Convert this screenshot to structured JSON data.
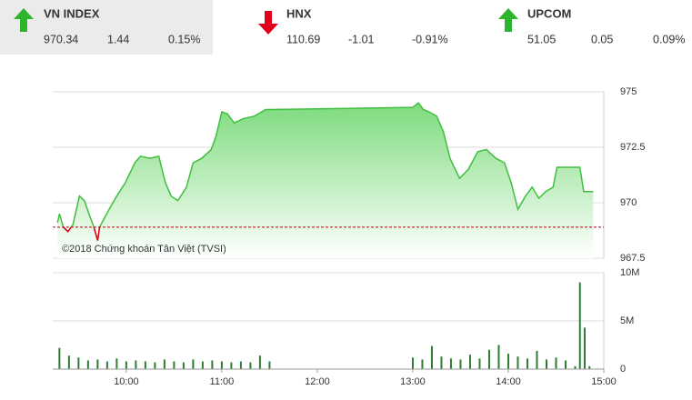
{
  "header": {
    "indices": [
      {
        "name": "VN INDEX",
        "price": "970.34",
        "change": "1.44",
        "percent": "0.15%",
        "direction": "up",
        "color": "#2db52d"
      },
      {
        "name": "HNX",
        "price": "110.69",
        "change": "-1.01",
        "percent": "-0.91%",
        "direction": "down",
        "color": "#e0001b"
      },
      {
        "name": "UPCOM",
        "price": "51.05",
        "change": "0.05",
        "percent": "0.09%",
        "direction": "up",
        "color": "#2db52d"
      }
    ]
  },
  "chart_data": [
    {
      "type": "area",
      "annotation": "©2018 Chứng khoán Tân Việt (TVSI)",
      "color": "#3fbf3f",
      "below_color": "#e0001b",
      "reference_line": 968.9,
      "reference_color": "#c00000",
      "x": [
        9.28,
        9.3,
        9.34,
        9.39,
        9.44,
        9.51,
        9.56,
        9.61,
        9.66,
        9.7,
        9.72,
        9.77,
        9.82,
        9.9,
        9.99,
        10.09,
        10.15,
        10.25,
        10.34,
        10.41,
        10.47,
        10.54,
        10.63,
        10.7,
        10.79,
        10.89,
        10.94,
        11.0,
        11.06,
        11.13,
        11.23,
        11.34,
        11.46,
        11.5,
        13.0,
        13.06,
        13.11,
        13.17,
        13.25,
        13.32,
        13.39,
        13.49,
        13.58,
        13.68,
        13.77,
        13.87,
        13.96,
        14.03,
        14.1,
        14.18,
        14.25,
        14.32,
        14.39,
        14.47,
        14.51,
        14.75,
        14.79,
        14.89
      ],
      "values": [
        969.1,
        969.5,
        968.9,
        968.7,
        969.0,
        970.3,
        970.1,
        969.5,
        968.9,
        968.3,
        968.9,
        969.3,
        969.7,
        970.3,
        970.9,
        971.8,
        972.1,
        972.0,
        972.1,
        970.9,
        970.3,
        970.1,
        970.7,
        971.8,
        972.0,
        972.4,
        973.0,
        974.1,
        974.0,
        973.6,
        973.8,
        973.9,
        974.2,
        974.2,
        974.3,
        974.5,
        974.2,
        974.1,
        973.9,
        973.2,
        972.0,
        971.1,
        971.5,
        972.3,
        972.4,
        972.0,
        971.8,
        970.9,
        969.7,
        970.3,
        970.7,
        970.2,
        970.5,
        970.7,
        971.6,
        971.6,
        970.5,
        970.5
      ],
      "xlim": [
        9.23,
        15.0
      ],
      "ylim": [
        967.5,
        975
      ],
      "yticks": [
        967.5,
        970,
        972.5,
        975
      ],
      "grid": true
    },
    {
      "type": "bar",
      "color": "#2e7d32",
      "x": [
        9.3,
        9.4,
        9.5,
        9.6,
        9.7,
        9.8,
        9.9,
        10.0,
        10.1,
        10.2,
        10.3,
        10.4,
        10.5,
        10.6,
        10.7,
        10.8,
        10.9,
        11.0,
        11.1,
        11.2,
        11.3,
        11.4,
        11.5,
        13.0,
        13.1,
        13.2,
        13.3,
        13.4,
        13.5,
        13.6,
        13.7,
        13.8,
        13.9,
        14.0,
        14.1,
        14.2,
        14.3,
        14.4,
        14.5,
        14.6,
        14.7,
        14.75,
        14.8,
        14.85
      ],
      "values": [
        2200000,
        1400000,
        1200000,
        900000,
        1000000,
        800000,
        1100000,
        800000,
        900000,
        800000,
        700000,
        1000000,
        800000,
        700000,
        1000000,
        800000,
        900000,
        800000,
        700000,
        800000,
        700000,
        1400000,
        800000,
        1200000,
        1000000,
        2400000,
        1300000,
        1100000,
        1000000,
        1500000,
        1100000,
        2000000,
        2500000,
        1600000,
        1300000,
        1100000,
        1900000,
        1000000,
        1200000,
        900000,
        300000,
        9000000,
        4300000,
        300000
      ],
      "xlim": [
        9.23,
        15.0
      ],
      "ylim": [
        0,
        10000000
      ],
      "yticks": [
        0,
        {
          "value": 5000000,
          "label": "5M"
        },
        {
          "value": 10000000,
          "label": "10M"
        }
      ],
      "xticks": [
        {
          "value": 10,
          "label": "10:00"
        },
        {
          "value": 11,
          "label": "11:00"
        },
        {
          "value": 12,
          "label": "12:00"
        },
        {
          "value": 13,
          "label": "13:00"
        },
        {
          "value": 14,
          "label": "14:00"
        },
        {
          "value": 15,
          "label": "15:00"
        }
      ],
      "grid": true
    }
  ]
}
